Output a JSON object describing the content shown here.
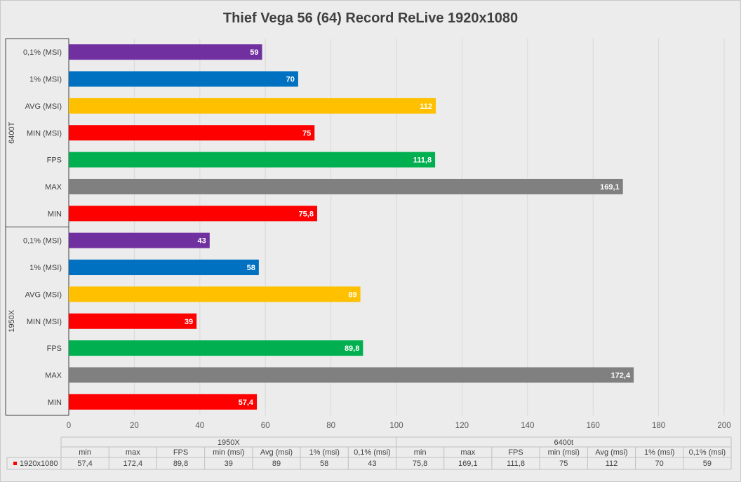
{
  "chart_data": {
    "type": "bar",
    "orientation": "horizontal",
    "title": "Thief Vega 56 (64) Record ReLive 1920x1080",
    "xlim": [
      0,
      200
    ],
    "x_ticks": [
      0,
      20,
      40,
      60,
      80,
      100,
      120,
      140,
      160,
      180,
      200
    ],
    "grid": true,
    "groups": [
      {
        "name": "6400T",
        "categories": [
          "0,1% (MSI)",
          "1% (MSI)",
          "AVG (MSI)",
          "MIN (MSI)",
          "FPS",
          "MAX",
          "MIN"
        ],
        "values": [
          59,
          70,
          112,
          75,
          111.8,
          169.1,
          75.8
        ],
        "labels": [
          "59",
          "70",
          "112",
          "75",
          "111,8",
          "169,1",
          "75,8"
        ],
        "colors": [
          "#7030a0",
          "#0070c0",
          "#ffc000",
          "#ff0000",
          "#00b050",
          "#808080",
          "#ff0000"
        ]
      },
      {
        "name": "1950X",
        "categories": [
          "0,1% (MSI)",
          "1% (MSI)",
          "AVG (MSI)",
          "MIN (MSI)",
          "FPS",
          "MAX",
          "MIN"
        ],
        "values": [
          43,
          58,
          89,
          39,
          89.8,
          172.4,
          57.4
        ],
        "labels": [
          "43",
          "58",
          "89",
          "39",
          "89,8",
          "172,4",
          "57,4"
        ],
        "colors": [
          "#7030a0",
          "#0070c0",
          "#ffc000",
          "#ff0000",
          "#00b050",
          "#808080",
          "#ff0000"
        ]
      }
    ],
    "data_table": {
      "series_name": "1920x1080",
      "series_color": "#ff0000",
      "groups": [
        {
          "name": "1950X",
          "columns": [
            "min",
            "max",
            "FPS",
            "min (msi)",
            "Avg (msi)",
            "1% (msi)",
            "0,1% (msi)"
          ],
          "values": [
            "57,4",
            "172,4",
            "89,8",
            "39",
            "89",
            "58",
            "43"
          ]
        },
        {
          "name": "6400t",
          "columns": [
            "min",
            "max",
            "FPS",
            "min (msi)",
            "Avg (msi)",
            "1% (msi)",
            "0,1% (msi)"
          ],
          "values": [
            "75,8",
            "169,1",
            "111,8",
            "75",
            "112",
            "70",
            "59"
          ]
        }
      ]
    }
  }
}
